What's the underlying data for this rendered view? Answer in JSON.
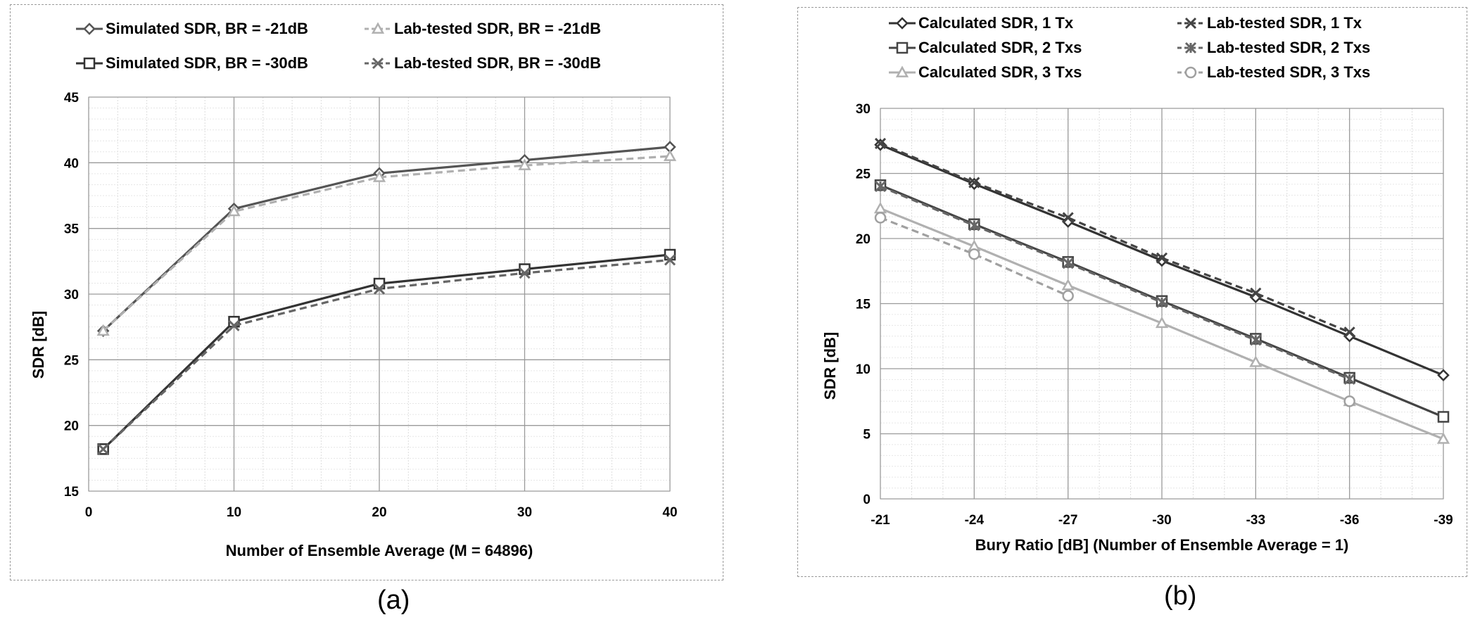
{
  "captions": {
    "a": "(a)",
    "b": "(b)"
  },
  "chart_data": [
    {
      "type": "line",
      "xlabel": "Number of Ensemble Average (M = 64896)",
      "ylabel": "SDR [dB]",
      "ylabel_rendered": "SDR [dB]",
      "x_ticks": [
        "0",
        "10",
        "20",
        "30",
        "40"
      ],
      "y_ticks": [
        "15",
        "20",
        "25",
        "30",
        "35",
        "40",
        "45"
      ],
      "xlim": [
        0,
        40
      ],
      "ylim": [
        15,
        45
      ],
      "grid": true,
      "legend_position": "top",
      "x": [
        1,
        10,
        20,
        30,
        40
      ],
      "series": [
        {
          "name": "Simulated SDR, BR = -21dB",
          "values": [
            27.2,
            36.5,
            39.2,
            40.2,
            41.2
          ],
          "color": "#555555",
          "marker": "diamond",
          "dash": "solid"
        },
        {
          "name": "Lab-tested SDR, BR = -21dB",
          "values": [
            27.2,
            36.3,
            38.9,
            39.8,
            40.5
          ],
          "color": "#b0b0b0",
          "marker": "triangle",
          "dash": "dashed"
        },
        {
          "name": "Simulated SDR, BR = -30dB",
          "values": [
            18.2,
            27.9,
            30.8,
            31.9,
            33.0
          ],
          "color": "#333333",
          "marker": "square",
          "dash": "solid"
        },
        {
          "name": "Lab-tested SDR, BR = -30dB",
          "values": [
            18.2,
            27.6,
            30.4,
            31.6,
            32.6
          ],
          "color": "#666666",
          "marker": "x",
          "dash": "dashed"
        }
      ]
    },
    {
      "type": "line",
      "xlabel": "Bury Ratio [dB] (Number of Ensemble Average = 1)",
      "ylabel": "SDR [dB]",
      "ylabel_rendered": "SDR [dB]",
      "x_ticks": [
        "-21",
        "-24",
        "-27",
        "-30",
        "-33",
        "-36",
        "-39"
      ],
      "y_ticks": [
        "0",
        "5",
        "10",
        "15",
        "20",
        "25",
        "30"
      ],
      "xlim": [
        -21,
        -39
      ],
      "ylim": [
        0,
        30
      ],
      "grid": true,
      "legend_position": "top",
      "x": [
        -21,
        -24,
        -27,
        -30,
        -33,
        -36,
        -39
      ],
      "series": [
        {
          "name": "Calculated SDR, 1 Tx",
          "values": [
            27.2,
            24.2,
            21.3,
            18.3,
            15.5,
            12.5,
            9.5
          ],
          "color": "#333333",
          "marker": "diamond",
          "dash": "solid"
        },
        {
          "name": "Lab-tested SDR, 1 Tx",
          "values": [
            27.3,
            24.3,
            21.6,
            18.5,
            15.8,
            12.8,
            null
          ],
          "color": "#444444",
          "marker": "x",
          "dash": "dashed"
        },
        {
          "name": "Calculated SDR, 2 Txs",
          "values": [
            24.1,
            21.1,
            18.2,
            15.2,
            12.3,
            9.3,
            6.3
          ],
          "color": "#444444",
          "marker": "square",
          "dash": "solid"
        },
        {
          "name": "Lab-tested SDR, 2 Txs",
          "values": [
            24.0,
            21.0,
            18.1,
            15.1,
            12.2,
            9.2,
            null
          ],
          "color": "#666666",
          "marker": "star",
          "dash": "dashed"
        },
        {
          "name": "Calculated SDR, 3 Txs",
          "values": [
            22.3,
            19.4,
            16.4,
            13.5,
            10.5,
            7.5,
            4.6
          ],
          "color": "#b0b0b0",
          "marker": "triangle",
          "dash": "solid"
        },
        {
          "name": "Lab-tested SDR, 3 Txs",
          "values": [
            21.6,
            18.8,
            15.6,
            null,
            null,
            7.5,
            null
          ],
          "color": "#a0a0a0",
          "marker": "circle",
          "dash": "dashed"
        }
      ]
    }
  ]
}
